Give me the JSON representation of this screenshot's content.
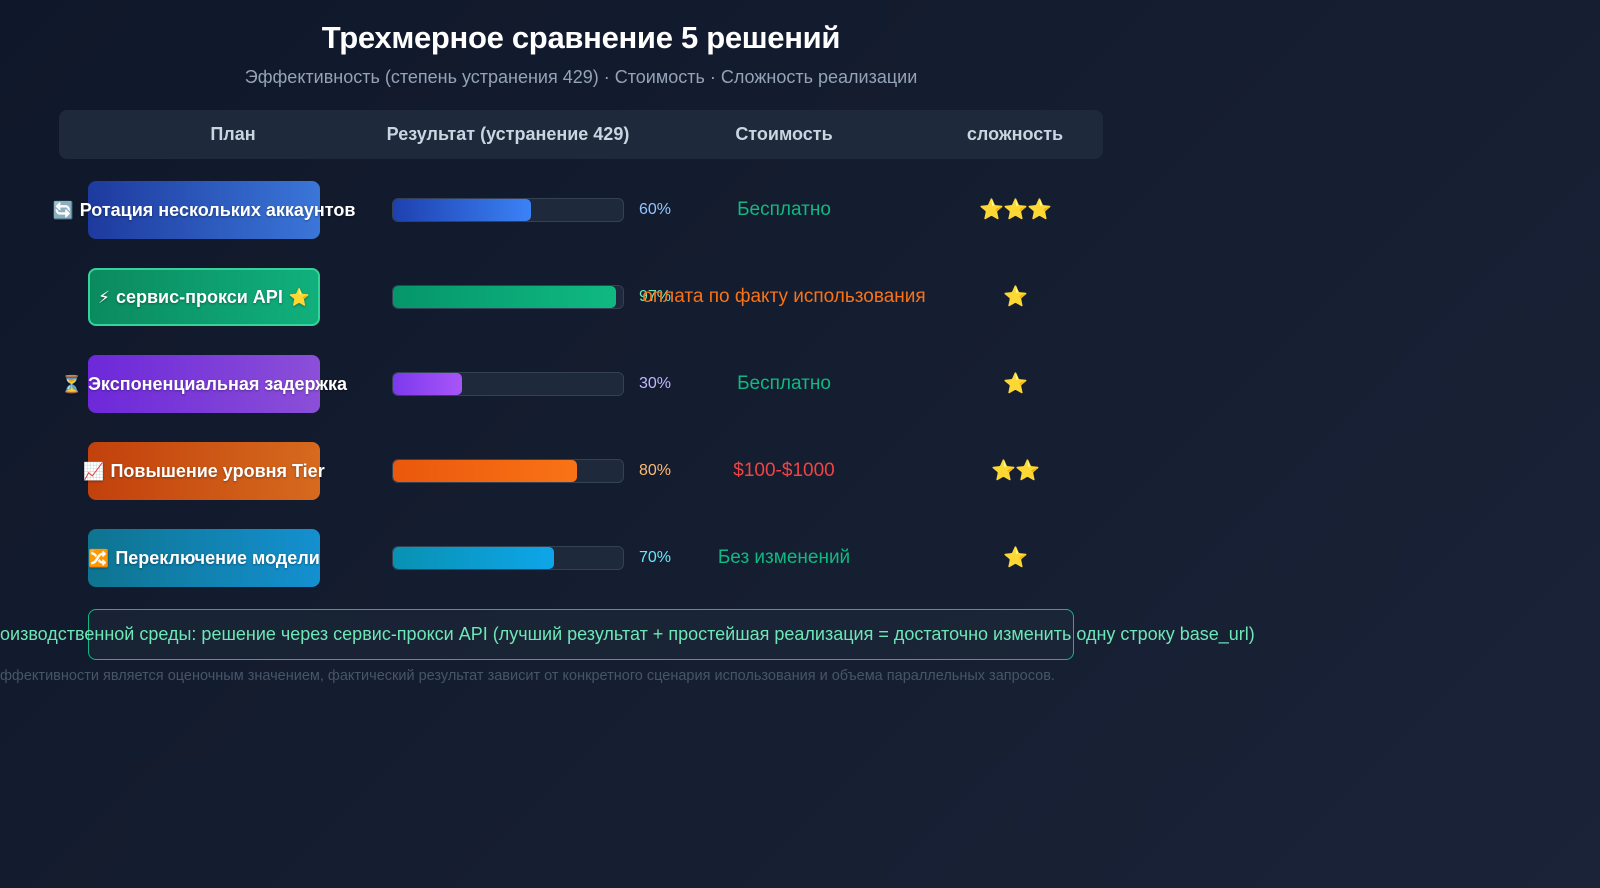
{
  "header": {
    "title": "Трехмерное сравнение 5 решений",
    "subtitle": "Эффективность (степень устранения 429) · Стоимость · Сложность реализации"
  },
  "table": {
    "columns": [
      "План",
      "Результат (устранение 429)",
      "Стоимость",
      "сложность"
    ]
  },
  "rows": [
    {
      "icon": "🔄",
      "icon_name": "rotation-icon",
      "plan": "Ротация нескольких аккаунтов",
      "icon_after": "",
      "badge_gradient": [
        "#1e3a9e",
        "#3a76d8"
      ],
      "highlight": false,
      "percent": 60,
      "percent_label": "60%",
      "bar_gradient": [
        "#1e40af",
        "#3b82f6"
      ],
      "percent_color": "#93c5fd",
      "cost": "Бесплатно",
      "cost_color": "#10b981",
      "stars": "⭐⭐⭐",
      "difficulty": 3
    },
    {
      "icon": "⚡",
      "icon_name": "lightning-icon",
      "plan": "сервис-прокси API",
      "icon_after": "⭐",
      "badge_gradient": [
        "#0b8a5f",
        "#10b07d"
      ],
      "highlight": true,
      "percent": 97,
      "percent_label": "97%",
      "bar_gradient": [
        "#059669",
        "#10b981"
      ],
      "percent_color": "#6ee7b7",
      "cost": "оплата по факту использования",
      "cost_color": "#f97316",
      "stars": "⭐",
      "difficulty": 1
    },
    {
      "icon": "⏳",
      "icon_name": "hourglass-icon",
      "plan": "Экспоненциальная задержка",
      "icon_after": "",
      "badge_gradient": [
        "#6d28d9",
        "#8b4fd8"
      ],
      "highlight": false,
      "percent": 30,
      "percent_label": "30%",
      "bar_gradient": [
        "#7c3aed",
        "#a855f7"
      ],
      "percent_color": "#c4b5fd",
      "cost": "Бесплатно",
      "cost_color": "#10b981",
      "stars": "⭐",
      "difficulty": 1
    },
    {
      "icon": "📈",
      "icon_name": "chart-up-icon",
      "plan": "Повышение уровня Tier",
      "icon_after": "",
      "badge_gradient": [
        "#c2410c",
        "#d66a1e"
      ],
      "highlight": false,
      "percent": 80,
      "percent_label": "80%",
      "bar_gradient": [
        "#ea580c",
        "#f97316"
      ],
      "percent_color": "#fdba74",
      "cost": "$100-$1000",
      "cost_color": "#ef4444",
      "stars": "⭐⭐",
      "difficulty": 2
    },
    {
      "icon": "🔀",
      "icon_name": "shuffle-icon",
      "plan": "Переключение модели",
      "icon_after": "",
      "badge_gradient": [
        "#0e7490",
        "#1490d0"
      ],
      "highlight": false,
      "percent": 70,
      "percent_label": "70%",
      "bar_gradient": [
        "#0891b2",
        "#0ea5e9"
      ],
      "percent_color": "#67e8f9",
      "cost": "Без изменений",
      "cost_color": "#10b981",
      "stars": "⭐",
      "difficulty": 1
    }
  ],
  "footer": {
    "recommendation": "оизводственной среды: решение через сервис-прокси API (лучший результат + простейшая реализация = достаточно изменить одну строку base_url)",
    "disclaimer": "ффективности является оценочным значением, фактический результат зависит от конкретного сценария использования и объема параллельных запросов."
  },
  "colors": {
    "background": "#0f172a",
    "header_bg": "#1e293b",
    "accent_green": "#10b981",
    "star": "#fbbf24"
  },
  "chart_data": {
    "type": "table",
    "title": "Трехмерное сравнение 5 решений",
    "subtitle": "Эффективность (степень устранения 429) · Стоимость · Сложность реализации",
    "columns": [
      "План",
      "Результат (устранение 429)",
      "Стоимость",
      "сложность"
    ],
    "categories": [
      "Ротация нескольких аккаунтов",
      "сервис-прокси API",
      "Экспоненциальная задержка",
      "Повышение уровня Tier",
      "Переключение модели"
    ],
    "series": [
      {
        "name": "Результат (устранение 429), %",
        "values": [
          60,
          97,
          30,
          80,
          70
        ]
      },
      {
        "name": "сложность (звезды)",
        "values": [
          3,
          1,
          1,
          2,
          1
        ]
      }
    ],
    "cost": [
      "Бесплатно",
      "оплата по факту использования",
      "Бесплатно",
      "$100-$1000",
      "Без изменений"
    ],
    "xlim": [
      0,
      100
    ]
  }
}
